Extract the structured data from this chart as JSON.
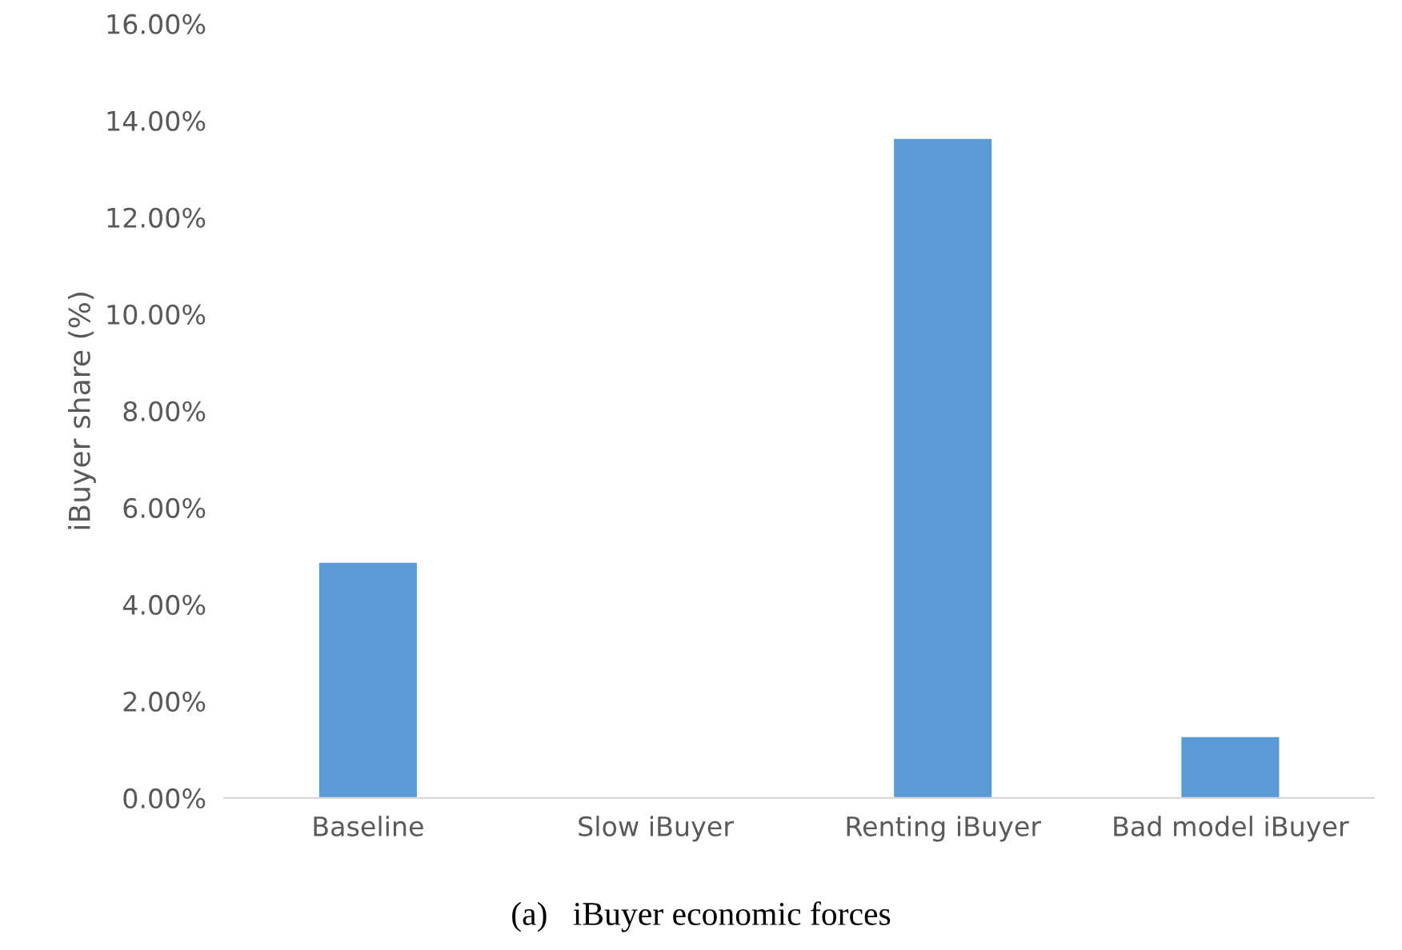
{
  "chart_data": {
    "type": "bar",
    "ylabel": "iBuyer share (%)",
    "categories": [
      "Baseline",
      "Slow iBuyer",
      "Renting iBuyer",
      "Bad model iBuyer"
    ],
    "values": [
      4.86,
      0,
      13.62,
      1.26
    ],
    "color": "#5b9bd5",
    "ylim": [
      0,
      16
    ],
    "yticks": [
      {
        "value": 0,
        "label": "0.00%"
      },
      {
        "value": 2,
        "label": "2.00%"
      },
      {
        "value": 4,
        "label": "4.00%"
      },
      {
        "value": 6,
        "label": "6.00%"
      },
      {
        "value": 8,
        "label": "8.00%"
      },
      {
        "value": 10,
        "label": "10.00%"
      },
      {
        "value": 12,
        "label": "12.00%"
      },
      {
        "value": 14,
        "label": "14.00%"
      },
      {
        "value": 16,
        "label": "16.00%"
      }
    ],
    "grid": false,
    "annotations": [
      "(a)   iBuyer economic forces"
    ]
  }
}
